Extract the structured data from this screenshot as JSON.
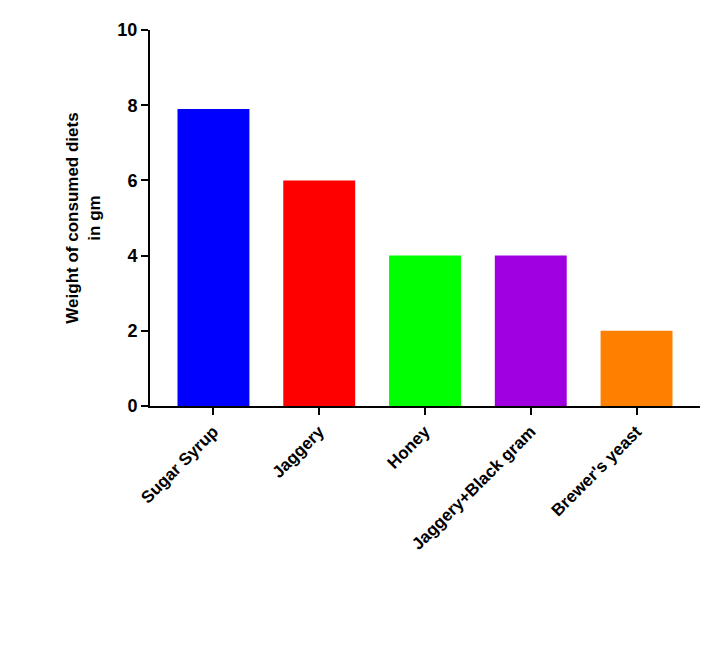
{
  "chart_data": {
    "type": "bar",
    "y_label": "Weight of consumed diets in gm",
    "categories": [
      "Sugar Syrup",
      "Jaggery",
      "Honey",
      "Jaggery+Black gram",
      "Brewer's yeast"
    ],
    "values": [
      7.9,
      6,
      4,
      4,
      2
    ],
    "colors": [
      "#0000ff",
      "#ff0000",
      "#00ff00",
      "#a000e0",
      "#ff8000"
    ],
    "ylim": [
      0,
      10
    ],
    "yticks": [
      0,
      2,
      4,
      6,
      8,
      10
    ],
    "grid": false
  }
}
